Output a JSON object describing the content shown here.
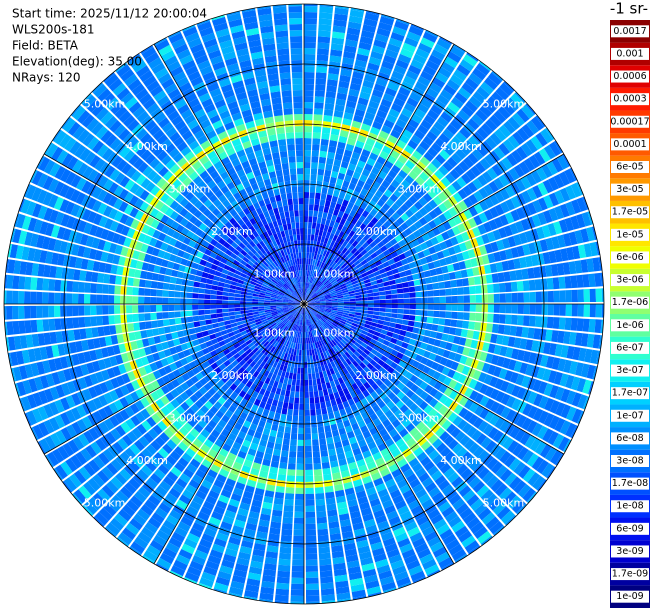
{
  "chart_data": {
    "type": "ppi",
    "header": [
      "Start time: 2025/11/12 20:00:04",
      "WLS200s-181",
      "Field: BETA",
      "Elevation(deg): 35.00",
      "NRays: 120"
    ],
    "colorbar_label": "-1 sr-",
    "range_rings": [
      {
        "value": 1,
        "label": "1.00km"
      },
      {
        "value": 2,
        "label": "2.00km"
      },
      {
        "value": 3,
        "label": "3.00km"
      },
      {
        "value": 4,
        "label": "4.00km"
      },
      {
        "value": 5,
        "label": "5.00km"
      }
    ],
    "rlim": [
      0,
      5
    ],
    "colorbar": {
      "ticks": [
        {
          "value": 1e-09,
          "label": "1e-09"
        },
        {
          "value": 1.7e-09,
          "label": "1.7e-09"
        },
        {
          "value": 3e-09,
          "label": "3e-09"
        },
        {
          "value": 6e-09,
          "label": "6e-09"
        },
        {
          "value": 1e-08,
          "label": "1e-08"
        },
        {
          "value": 1.7e-08,
          "label": "1.7e-08"
        },
        {
          "value": 3e-08,
          "label": "3e-08"
        },
        {
          "value": 6e-08,
          "label": "6e-08"
        },
        {
          "value": 1e-07,
          "label": "1e-07"
        },
        {
          "value": 1.7e-07,
          "label": "1.7e-07"
        },
        {
          "value": 3e-07,
          "label": "3e-07"
        },
        {
          "value": 6e-07,
          "label": "6e-07"
        },
        {
          "value": 1e-06,
          "label": "1e-06"
        },
        {
          "value": 1.7e-06,
          "label": "1.7e-06"
        },
        {
          "value": 3e-06,
          "label": "3e-06"
        },
        {
          "value": 6e-06,
          "label": "6e-06"
        },
        {
          "value": 1e-05,
          "label": "1e-05"
        },
        {
          "value": 1.7e-05,
          "label": "1.7e-05"
        },
        {
          "value": 3e-05,
          "label": "3e-05"
        },
        {
          "value": 6e-05,
          "label": "6e-05"
        },
        {
          "value": 0.0001,
          "label": "0.0001"
        },
        {
          "value": 0.00017,
          "label": "0.00017"
        },
        {
          "value": 0.0003,
          "label": "0.0003"
        },
        {
          "value": 0.0006,
          "label": "0.0006"
        },
        {
          "value": 0.001,
          "label": "0.001"
        },
        {
          "value": 0.0017,
          "label": "0.0017"
        }
      ],
      "colors": [
        "#000080",
        "#0000a0",
        "#0000d0",
        "#0010f0",
        "#0030ff",
        "#0050ff",
        "#0070ff",
        "#0090ff",
        "#00b0ff",
        "#00d0ff",
        "#10f0f0",
        "#30ffd0",
        "#60ffa0",
        "#90ff70",
        "#c8ff30",
        "#f0ff00",
        "#ffe600",
        "#ffc000",
        "#ff9900",
        "#ff7a00",
        "#ff5a00",
        "#ff3a00",
        "#ff1a00",
        "#e00000",
        "#b00000",
        "#8b0000"
      ]
    }
  }
}
